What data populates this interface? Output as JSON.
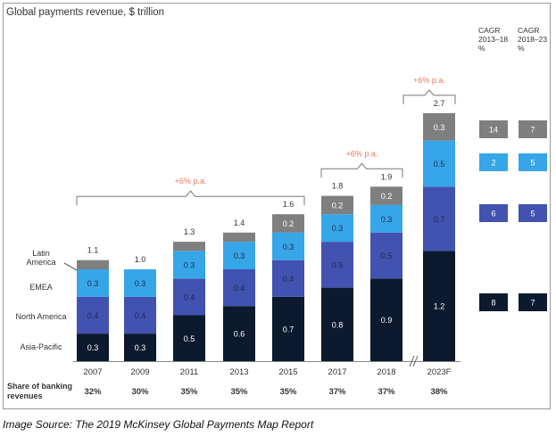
{
  "chart_data": {
    "type": "bar",
    "stacked": true,
    "title": "Global payments revenue, $ trillion",
    "categories": [
      "2007",
      "2009",
      "2011",
      "2013",
      "2015",
      "2017",
      "2018",
      "2023F"
    ],
    "series": [
      {
        "name": "Asia-Pacific",
        "color": "#0b1a2e",
        "values": [
          0.3,
          0.3,
          0.5,
          0.6,
          0.7,
          0.8,
          0.9,
          1.2
        ]
      },
      {
        "name": "North America",
        "color": "#4152b0",
        "values": [
          0.4,
          0.4,
          0.4,
          0.4,
          0.4,
          0.5,
          0.5,
          0.7
        ]
      },
      {
        "name": "EMEA",
        "color": "#36a6e8",
        "values": [
          0.3,
          0.3,
          0.3,
          0.3,
          0.3,
          0.3,
          0.3,
          0.5
        ]
      },
      {
        "name": "Latin America",
        "color": "#7f7f7f",
        "values": [
          null,
          null,
          null,
          null,
          0.2,
          0.2,
          0.2,
          0.3
        ]
      }
    ],
    "totals": [
      "1.1",
      "1.0",
      "1.3",
      "1.4",
      "1.6",
      "1.8",
      "1.9",
      "2.7"
    ],
    "legend_labels": [
      "Latin\nAmerica",
      "EMEA",
      "North America",
      "Asia-Pacific"
    ],
    "ylim": [
      0,
      2.8
    ],
    "growth_annotations": [
      {
        "label": "+6% p.a.",
        "from": "2007",
        "to": "2015"
      },
      {
        "label": "+6% p.a.",
        "from": "2017",
        "to": "2018"
      },
      {
        "label": "+6% p.a.",
        "from": "2023F",
        "to": "2023F"
      }
    ],
    "axis_break_before": "2023F",
    "share_of_banking": {
      "label": "Share of banking\nrevenues",
      "values": [
        "32%",
        "30%",
        "35%",
        "35%",
        "35%",
        "37%",
        "37%",
        "38%"
      ]
    },
    "cagr": {
      "headers": [
        "CAGR\n2013–18\n%",
        "CAGR\n2018–23\n%"
      ],
      "rows": [
        {
          "series": "Latin America",
          "values": [
            "14",
            "7"
          ]
        },
        {
          "series": "EMEA",
          "values": [
            "2",
            "5"
          ]
        },
        {
          "series": "North America",
          "values": [
            "6",
            "5"
          ]
        },
        {
          "series": "Asia-Pacific",
          "values": [
            "8",
            "7"
          ]
        }
      ]
    },
    "accent_color": "#e8765a"
  },
  "caption": "Image Source: The 2019 McKinsey Global Payments Map Report"
}
